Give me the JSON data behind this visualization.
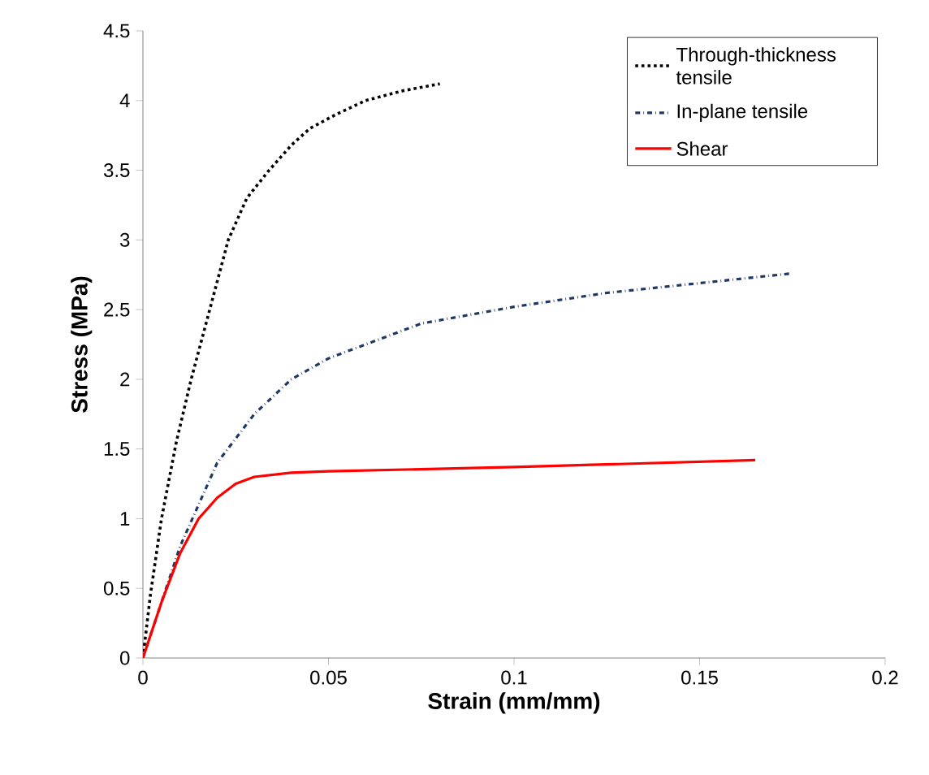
{
  "chart_data": {
    "type": "line",
    "xlabel": "Strain (mm/mm)",
    "ylabel": "Stress (MPa)",
    "xlim": [
      0,
      0.2
    ],
    "xticks": [
      0,
      0.05,
      0.1,
      0.15,
      0.2
    ],
    "ylim": [
      0,
      4.5
    ],
    "yticks": [
      0,
      0.5,
      1,
      1.5,
      2,
      2.5,
      3,
      3.5,
      4,
      4.5
    ],
    "grid": false,
    "legend": "top right",
    "marker": "none",
    "series": [
      {
        "name": "Through-thickness tensile",
        "color": "#000000",
        "line_style": "dotted",
        "x": [
          0,
          0.002,
          0.005,
          0.009,
          0.013,
          0.018,
          0.023,
          0.028,
          0.034,
          0.04,
          0.045,
          0.052,
          0.06,
          0.07,
          0.08
        ],
        "values": [
          0,
          0.45,
          1.0,
          1.55,
          2.0,
          2.5,
          3.0,
          3.3,
          3.5,
          3.68,
          3.8,
          3.9,
          4.0,
          4.07,
          4.12
        ]
      },
      {
        "name": "In-plane tensile",
        "color": "#1f3864",
        "line_style": "dashdot",
        "x": [
          0,
          0.005,
          0.01,
          0.015,
          0.02,
          0.03,
          0.04,
          0.05,
          0.075,
          0.1,
          0.125,
          0.15,
          0.175
        ],
        "values": [
          0,
          0.4,
          0.8,
          1.1,
          1.4,
          1.75,
          2.0,
          2.15,
          2.4,
          2.52,
          2.62,
          2.69,
          2.76
        ]
      },
      {
        "name": "Shear",
        "color": "#ff0000",
        "line_style": "solid",
        "x": [
          0,
          0.005,
          0.01,
          0.015,
          0.02,
          0.025,
          0.03,
          0.04,
          0.05,
          0.1,
          0.165
        ],
        "values": [
          0,
          0.4,
          0.75,
          1.0,
          1.15,
          1.25,
          1.3,
          1.33,
          1.34,
          1.37,
          1.42
        ]
      }
    ]
  }
}
